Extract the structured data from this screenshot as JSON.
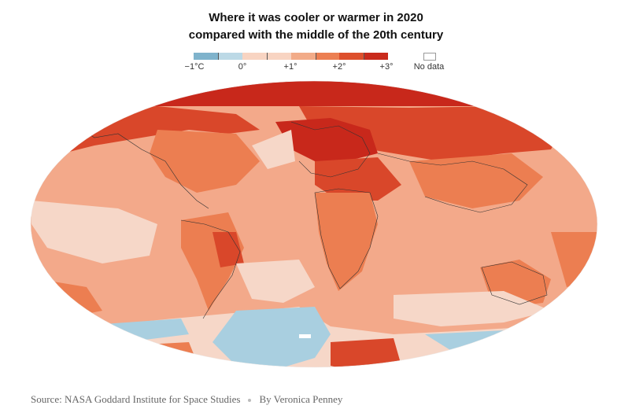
{
  "title": {
    "line1": "Where it was cooler or warmer in 2020",
    "line2": "compared with the middle of the 20th century"
  },
  "legend": {
    "ticks": [
      {
        "label": "−1°C"
      },
      {
        "label": "0°"
      },
      {
        "label": "+1°"
      },
      {
        "label": "+2°"
      },
      {
        "label": "+3°"
      }
    ],
    "colors": [
      "#7fb3cc",
      "#bcd9e6",
      "#f8d4c2",
      "#f2ab88",
      "#ec7f52",
      "#dd4f2c",
      "#c92a1c"
    ],
    "no_data_label": "No data",
    "no_data_color": "#ffffff"
  },
  "map": {
    "description_colors": {
      "cool": "#a9cfe0",
      "neutral": "#f6d7c8",
      "light_warm": "#f3a98a",
      "warm": "#ec7e51",
      "hot": "#d9472a",
      "hottest": "#c8281b",
      "border": "#333333"
    }
  },
  "credits": {
    "source": "Source: NASA Goddard Institute for Space Studies",
    "byline": "By Veronica Penney"
  }
}
